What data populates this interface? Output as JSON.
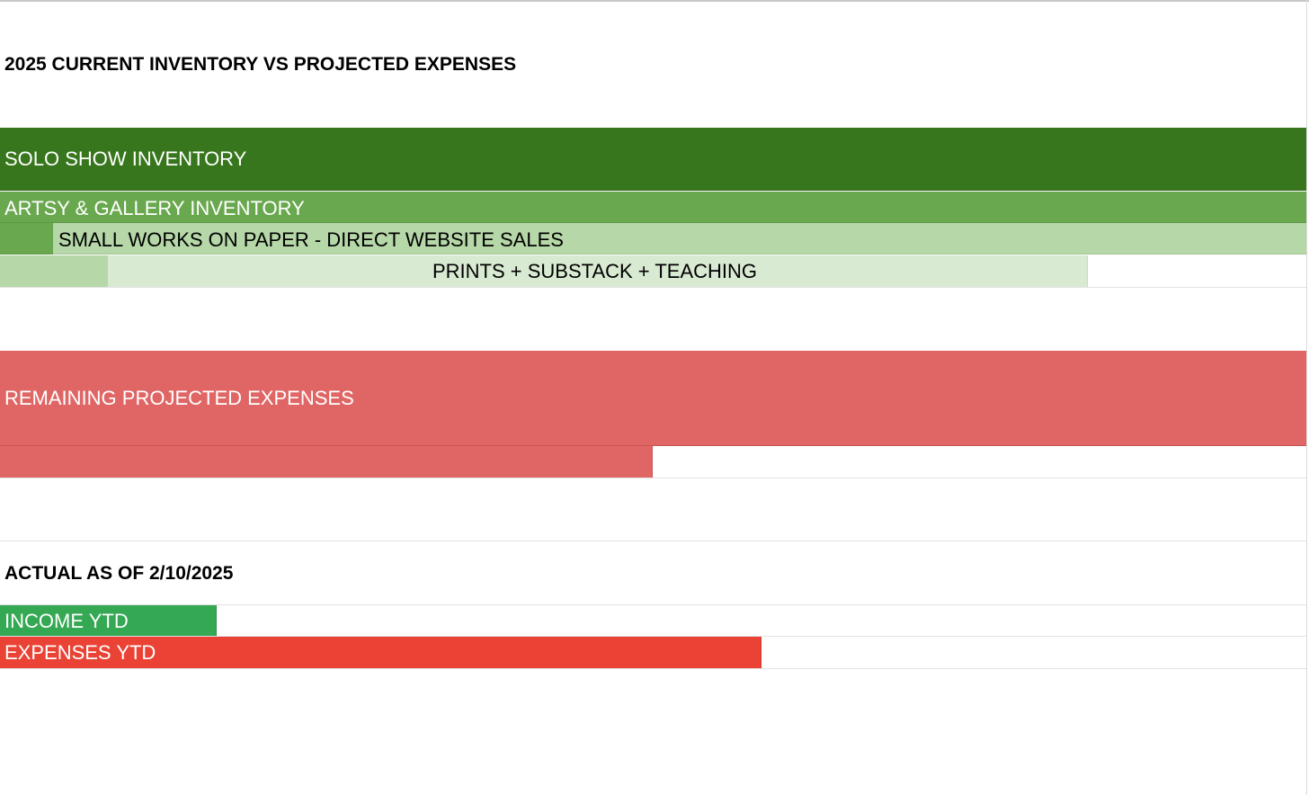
{
  "sheet": {
    "title": "2025 CURRENT INVENTORY VS PROJECTED EXPENSES",
    "inventory": {
      "solo_show": "SOLO SHOW INVENTORY",
      "artsy_gallery": "ARTSY & GALLERY INVENTORY",
      "small_works": "SMALL WORKS ON PAPER - DIRECT WEBSITE SALES",
      "prints": "PRINTS + SUBSTACK + TEACHING"
    },
    "expenses": {
      "remaining": "REMAINING PROJECTED EXPENSES"
    },
    "actual": {
      "heading": "ACTUAL AS OF 2/10/2025",
      "income": "INCOME YTD",
      "expenses": "EXPENSES YTD"
    }
  },
  "colors": {
    "dark_green": "#38761d",
    "medium_green": "#6aa84f",
    "light_green": "#b6d7a8",
    "lightest_green": "#d9ead3",
    "salmon_red": "#e06666",
    "income_green": "#34a853",
    "expenses_red": "#ea4335"
  }
}
